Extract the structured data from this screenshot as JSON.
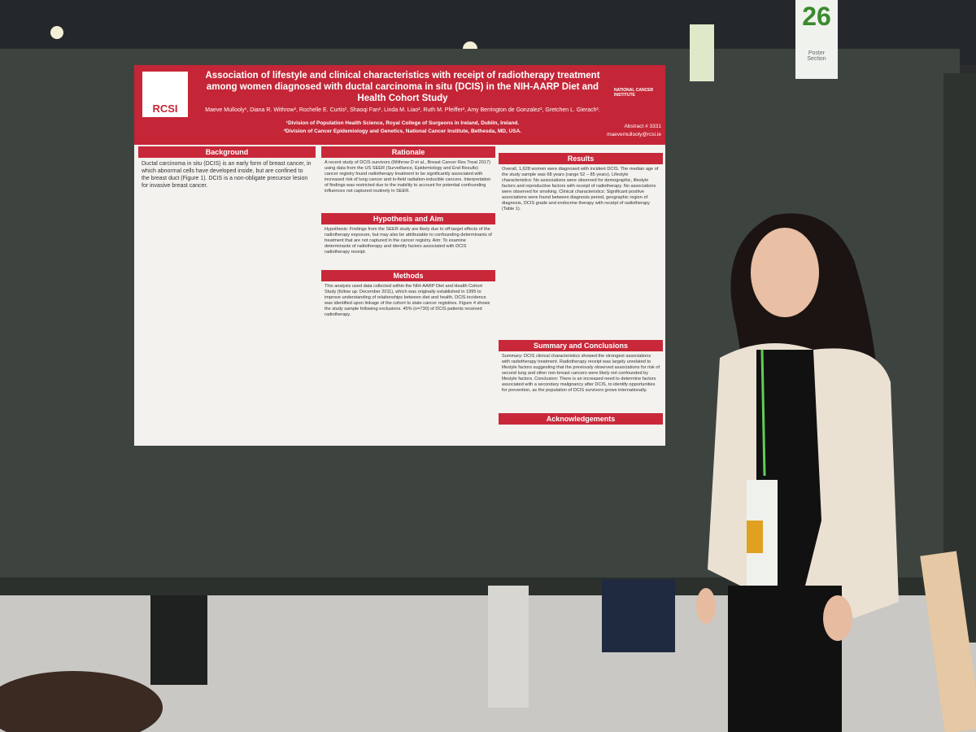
{
  "sign": {
    "number": "26",
    "label": "Poster Section"
  },
  "poster": {
    "logo": "RCSI",
    "title": "Association of lifestyle and clinical characteristics with receipt of radiotherapy treatment among women diagnosed with ductal carcinoma in situ (DCIS) in the NIH-AARP Diet and Health Cohort Study",
    "authors": "Maeve Mullooly¹, Diana R. Withrow², Rochelle E. Curtis², Shaoqi Fan², Linda M. Liao², Ruth M. Pfeiffer², Amy Berrington de Gonzalez², Gretchen L. Gierach².",
    "affiliations": [
      "¹Division of Population Health Science, Royal College of Surgeons in Ireland, Dublin, Ireland.",
      "²Division of Cancer Epidemiology and Genetics, National Cancer Institute, Bethesda, MD, USA."
    ],
    "abstract": "Abstract # 3331",
    "email": "maevemullooly@rcsi.ie",
    "nih": "NATIONAL CANCER INSTITUTE",
    "sections": [
      {
        "title": "Background",
        "text": "Ductal carcinoma in situ (DCIS) is an early form of breast cancer, in which abnormal cells have developed inside, but are confined to the breast duct (Figure 1). DCIS is a non-obligate precursor lesion for invasive breast cancer."
      },
      {
        "title": "Rationale",
        "text": "A recent study of DCIS survivors (Withrow D et al., Breast Cancer Res Treat 2017) using data from the US SEER (Surveillance, Epidemiology and End Results) cancer registry found radiotherapy treatment to be significantly associated with increased risk of lung cancer and in-field radiation-inducible cancers. Interpretation of findings was restricted due to the inability to account for potential confounding influences not captured routinely in SEER."
      },
      {
        "title": "Hypothesis and Aim",
        "text": "Hypothesis: Findings from the SEER study are likely due to off-target effects of the radiotherapy exposure, but may also be attributable to confounding determinants of treatment that are not captured in the cancer registry. Aim: To examine determinants of radiotherapy and identify factors associated with DCIS radiotherapy receipt."
      },
      {
        "title": "Methods",
        "text": "This analysis used data collected within the NIH-AARP Diet and Health Cohort Study (follow up: December 2011), which was originally established in 1995 to improve understanding of relationships between diet and health. DCIS incidence was identified upon linkage of the cohort to state cancer registries. Figure 4 shows the study sample following exclusions. 45% (n=730) of DCIS patients received radiotherapy."
      },
      {
        "title": "Results",
        "text": "Overall, 1,628 women were diagnosed with incident DCIS. The median age of the study sample was 68 years (range 52 – 85 years). Lifestyle characteristics: No associations were observed for demographic, lifestyle factors and reproductive factors with receipt of radiotherapy. No associations were observed for smoking. Clinical characteristics: Significant positive associations were found between diagnosis period, geographic region of diagnosis, DCIS grade and endocrine therapy with receipt of radiotherapy (Table 1)."
      },
      {
        "title": "Summary and Conclusions",
        "text": "Summary: DCIS clinical characteristics showed the strongest associations with radiotherapy treatment. Radiotherapy receipt was largely unrelated to lifestyle factors suggesting that the previously observed associations for risk of second lung and other non-breast cancers were likely not confounded by lifestyle factors. Conclusion: There is an increased need to determine factors associated with a secondary malignancy after DCIS, to identify opportunities for prevention, as the population of DCIS survivors grows internationally."
      },
      {
        "title": "Acknowledgements",
        "text": ""
      }
    ]
  }
}
